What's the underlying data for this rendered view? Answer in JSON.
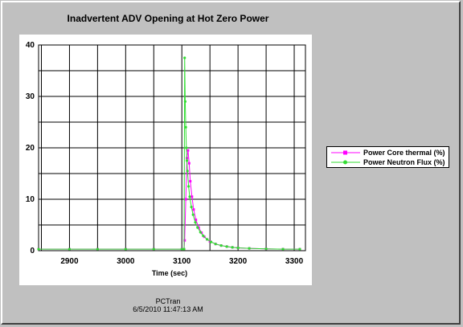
{
  "chart_data": {
    "type": "line",
    "title": "Inadvertent ADV Opening at Hot Zero Power",
    "xlabel": "Time (sec)",
    "ylabel": "",
    "xlim": [
      2845,
      3320
    ],
    "ylim": [
      0,
      40
    ],
    "x_ticks": [
      2900,
      3000,
      3100,
      3200,
      3300
    ],
    "y_ticks": [
      0,
      10,
      20,
      30,
      40
    ],
    "grid": true,
    "legend_position": "right",
    "series": [
      {
        "name": "Power Core thermal (%)",
        "color": "#ff00ff",
        "marker": "square",
        "x": [
          2845,
          2900,
          2950,
          3000,
          3050,
          3100,
          3104,
          3105,
          3107,
          3109,
          3111,
          3113,
          3115,
          3118,
          3121,
          3125,
          3130,
          3135,
          3140,
          3145,
          3150,
          3160,
          3170,
          3180,
          3190,
          3200,
          3220,
          3250,
          3280,
          3310
        ],
        "y": [
          0.3,
          0.3,
          0.3,
          0.3,
          0.3,
          0.3,
          0.3,
          2,
          10,
          18,
          19.5,
          17,
          13.5,
          10.5,
          8,
          6,
          4.5,
          3.5,
          2.7,
          2.2,
          1.8,
          1.3,
          1.0,
          0.8,
          0.65,
          0.55,
          0.45,
          0.35,
          0.3,
          0.3
        ]
      },
      {
        "name": "Power Neutron Flux (%)",
        "color": "#33dd33",
        "marker": "circle",
        "x": [
          2845,
          2900,
          2950,
          3000,
          3050,
          3100,
          3104,
          3105,
          3106,
          3107,
          3108,
          3109,
          3110,
          3112,
          3114,
          3117,
          3120,
          3124,
          3128,
          3133,
          3138,
          3145,
          3152,
          3160,
          3170,
          3180,
          3190,
          3200,
          3220,
          3250,
          3280,
          3310
        ],
        "y": [
          0.3,
          0.3,
          0.3,
          0.3,
          0.3,
          0.3,
          0.3,
          37.5,
          29,
          24,
          20,
          17.5,
          15.5,
          12.5,
          10.5,
          8.5,
          7,
          5.5,
          4.5,
          3.6,
          2.9,
          2.2,
          1.7,
          1.3,
          1.0,
          0.8,
          0.65,
          0.55,
          0.45,
          0.35,
          0.3,
          0.3
        ]
      }
    ]
  },
  "footer": {
    "program": "PCTran",
    "timestamp": "6/5/2010 11:47:13 AM"
  }
}
